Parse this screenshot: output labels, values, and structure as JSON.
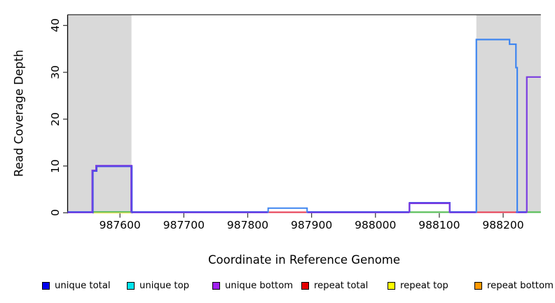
{
  "chart_data": {
    "type": "line",
    "subtype": "step-coverage",
    "title": "",
    "xlabel": "Coordinate in Reference Genome",
    "ylabel": "Read Coverage Depth",
    "xlim": [
      987518,
      988259
    ],
    "ylim": [
      0,
      42.3
    ],
    "x_ticks": [
      987600,
      987700,
      987800,
      987900,
      988000,
      988100,
      988200
    ],
    "y_ticks": [
      0,
      10,
      20,
      30,
      40
    ],
    "grid": false,
    "legend_position": "bottom",
    "colors": {
      "blue": "#3f86f0",
      "indigo": "#4a50e8",
      "purple": "#7a3ce0",
      "red": "#e84a5f",
      "green": "#5abf5a",
      "yellow": "#e0e055",
      "gray_region": "#d9d9d9",
      "top_line": "#4f4f4f",
      "axis": "#000000",
      "tick": "#404040"
    },
    "background_regions": [
      {
        "x0": 987518,
        "x1": 987618
      },
      {
        "x0": 988158,
        "x1": 988259
      }
    ],
    "top_line_y": 42.3,
    "coverage_blocks": [
      {
        "x_start": 987557,
        "x_end": 987618,
        "depth": 10,
        "note": "step 9 then 10, unique total+bottom overlap"
      },
      {
        "x_start": 987832,
        "x_end": 987893,
        "depth": 1,
        "note": "unique total"
      },
      {
        "x_start": 988053,
        "x_end": 988116,
        "depth": 2,
        "note": "unique bottom+total overlap"
      },
      {
        "x_start": 988158,
        "x_end": 988220,
        "depth": 37,
        "note": "steps 37 then 36 at 988210, brief 31 at edge"
      },
      {
        "x_start": 988237,
        "x_end": 988259,
        "depth": 29,
        "note": "unique bottom, clipped at right edge"
      }
    ],
    "traces": [
      {
        "name": "unique-block-1",
        "color": "indigo",
        "width": 1.5,
        "under": {
          "color": "purple",
          "width": 3.0,
          "dx": 0,
          "dy": 0
        },
        "dx": 0.8,
        "dy": 0.8,
        "points": [
          [
            987557,
            0
          ],
          [
            987557,
            9
          ],
          [
            987563,
            9
          ],
          [
            987563,
            10
          ],
          [
            987618,
            10
          ],
          [
            987618,
            0
          ]
        ]
      },
      {
        "name": "unique-total-block-2",
        "color": "blue",
        "width": 2.0,
        "points": [
          [
            987832,
            0
          ],
          [
            987832,
            1
          ],
          [
            987893,
            1
          ],
          [
            987893,
            0
          ]
        ]
      },
      {
        "name": "unique-bottom-block-3",
        "color": "purple",
        "width": 2.0,
        "under": {
          "color": "indigo",
          "width": 2.2,
          "dx": 0.4,
          "dy": -1.0
        },
        "points": [
          [
            988053,
            0
          ],
          [
            988053,
            2
          ],
          [
            988116,
            2
          ],
          [
            988116,
            0
          ]
        ]
      },
      {
        "name": "unique-total-block-4",
        "color": "blue",
        "width": 2.2,
        "points": [
          [
            988158,
            0
          ],
          [
            988158,
            37
          ],
          [
            988210,
            37
          ],
          [
            988210,
            36
          ],
          [
            988220,
            36
          ],
          [
            988220,
            31
          ],
          [
            988222,
            31
          ],
          [
            988222,
            0
          ]
        ]
      },
      {
        "name": "unique-bottom-block-5",
        "color": "purple",
        "width": 2.2,
        "points": [
          [
            988237,
            0
          ],
          [
            988237,
            29
          ],
          [
            988259,
            29
          ]
        ]
      }
    ],
    "baseline_segments": [
      {
        "x0": 987518,
        "x1": 987557,
        "style": "blue-purple"
      },
      {
        "x0": 987557,
        "x1": 987618,
        "style": "green-yellow"
      },
      {
        "x0": 987618,
        "x1": 987832,
        "style": "blue-purple"
      },
      {
        "x0": 987832,
        "x1": 987893,
        "style": "red"
      },
      {
        "x0": 987893,
        "x1": 988053,
        "style": "blue-purple"
      },
      {
        "x0": 988053,
        "x1": 988116,
        "style": "green"
      },
      {
        "x0": 988116,
        "x1": 988158,
        "style": "blue-purple"
      },
      {
        "x0": 988158,
        "x1": 988220,
        "style": "red"
      },
      {
        "x0": 988220,
        "x1": 988237,
        "style": "blue-purple"
      },
      {
        "x0": 988237,
        "x1": 988259,
        "style": "green"
      }
    ]
  },
  "legend": {
    "items": [
      {
        "label": "unique total",
        "color": "#0000ee"
      },
      {
        "label": "unique top",
        "color": "#00e5ee"
      },
      {
        "label": "unique bottom",
        "color": "#a020f0"
      },
      {
        "label": "repeat total",
        "color": "#e60000"
      },
      {
        "label": "repeat top",
        "color": "#ffff00"
      },
      {
        "label": "repeat bottom",
        "color": "#ff9900"
      }
    ]
  }
}
